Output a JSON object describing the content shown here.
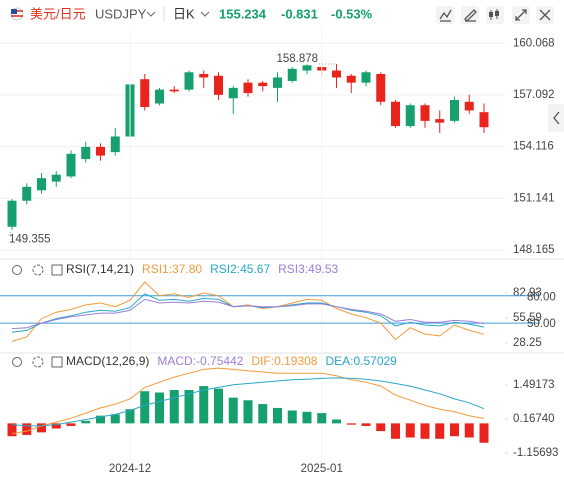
{
  "toolbar": {
    "pair_name": "美元/日元",
    "symbol": "USDJPY",
    "period": "日K",
    "price": 155.234,
    "change": -0.831,
    "change_pct": "-0.53%"
  },
  "chart_data": [
    {
      "type": "candlestick",
      "up_color": "#15a06e",
      "down_color": "#e8241c",
      "grid": true,
      "categories": [
        null,
        null,
        null,
        null,
        null,
        null,
        null,
        null,
        "2024-12",
        null,
        null,
        null,
        null,
        null,
        null,
        null,
        null,
        null,
        null,
        null,
        null,
        "2025-01",
        null,
        null,
        null,
        null,
        null,
        null,
        null,
        null,
        null,
        null,
        null
      ],
      "open": [
        149.5,
        151.0,
        151.6,
        152.1,
        152.4,
        153.4,
        154.1,
        153.8,
        154.7,
        158.0,
        156.6,
        157.4,
        157.4,
        158.3,
        158.2,
        156.9,
        157.8,
        157.8,
        157.5,
        157.9,
        158.5,
        158.7,
        158.5,
        158.2,
        157.8,
        158.3,
        156.7,
        155.3,
        156.5,
        155.7,
        155.6,
        156.7,
        156.1
      ],
      "close": [
        151.0,
        151.8,
        152.3,
        152.5,
        153.7,
        154.1,
        153.6,
        154.7,
        157.7,
        156.4,
        157.4,
        157.3,
        158.4,
        158.1,
        157.1,
        157.5,
        157.2,
        157.6,
        158.1,
        158.6,
        158.8,
        158.5,
        158.1,
        157.8,
        158.4,
        156.7,
        155.3,
        156.5,
        155.6,
        155.5,
        156.8,
        156.2,
        155.234
      ],
      "high": [
        151.1,
        152.0,
        152.6,
        152.7,
        153.9,
        154.4,
        154.3,
        155.2,
        158.0,
        158.3,
        157.5,
        157.6,
        158.5,
        158.5,
        158.4,
        157.6,
        158.0,
        157.9,
        158.4,
        158.7,
        158.85,
        158.75,
        158.878,
        158.3,
        158.5,
        158.4,
        156.8,
        156.6,
        156.6,
        156.2,
        157.0,
        157.1,
        156.6
      ],
      "low": [
        149.355,
        150.8,
        151.4,
        151.8,
        152.3,
        153.2,
        153.3,
        153.6,
        154.4,
        156.2,
        156.5,
        157.2,
        157.3,
        157.5,
        156.8,
        156.0,
        157.0,
        157.3,
        156.7,
        157.8,
        158.3,
        158.2,
        157.5,
        157.2,
        157.6,
        156.5,
        155.2,
        155.2,
        155.2,
        154.9,
        155.5,
        156.0,
        154.9
      ],
      "ylim": [
        147.7,
        160.95
      ],
      "yticks": [
        160.068,
        157.092,
        154.116,
        151.141,
        148.165
      ]
    },
    {
      "type": "line",
      "title": "RSI(7,14,21)",
      "grid": false,
      "series": [
        {
          "name": "RSI1:37.80",
          "color": "#f39a3a",
          "values": [
            30,
            35,
            55,
            62,
            65,
            70,
            72,
            68,
            75,
            95,
            80,
            82,
            78,
            83,
            80,
            68,
            70,
            66,
            68,
            72,
            76,
            75,
            66,
            60,
            56,
            50,
            32,
            45,
            38,
            36,
            48,
            42,
            37.8
          ]
        },
        {
          "name": "RSI2:45.67",
          "color": "#2aa6c8",
          "values": [
            40,
            42,
            50,
            55,
            58,
            62,
            64,
            63,
            67,
            82,
            75,
            76,
            74,
            77,
            76,
            68,
            69,
            67,
            68,
            70,
            72,
            72,
            68,
            64,
            62,
            58,
            47,
            51,
            48,
            47,
            51,
            49,
            45.67
          ]
        },
        {
          "name": "RSI3:49.53",
          "color": "#9d7fd6",
          "values": [
            44,
            45,
            50,
            54,
            57,
            59,
            61,
            61,
            64,
            76,
            72,
            73,
            72,
            74,
            73,
            68,
            69,
            68,
            68,
            69,
            71,
            71,
            68,
            65,
            63,
            60,
            52,
            54,
            51,
            51,
            53,
            52,
            49.53
          ]
        }
      ],
      "hlines": [
        {
          "value": 80,
          "label": "80.00",
          "color": "#3a9fe0"
        },
        {
          "value": 50,
          "label": "50.00",
          "color": "#3a9fe0"
        }
      ],
      "ylim": [
        20.6,
        97.2
      ],
      "yticks": [
        82.93,
        55.59,
        28.25
      ]
    },
    {
      "type": "combo",
      "title": "MACD(12,26,9)",
      "grid": false,
      "up_color": "#15a06e",
      "down_color": "#e8241c",
      "series": [
        {
          "name": "MACD:-0.75442",
          "kind": "bar",
          "color": "#9d7fd6",
          "values": [
            -0.5,
            -0.45,
            -0.35,
            -0.2,
            -0.1,
            0.1,
            0.3,
            0.35,
            0.55,
            1.25,
            1.2,
            1.3,
            1.3,
            1.45,
            1.35,
            1.0,
            0.9,
            0.75,
            0.6,
            0.5,
            0.45,
            0.4,
            0.15,
            -0.05,
            -0.1,
            -0.3,
            -0.6,
            -0.55,
            -0.6,
            -0.6,
            -0.5,
            -0.55,
            -0.75442
          ]
        },
        {
          "name": "DIF:0.19308",
          "kind": "line",
          "color": "#f39a3a",
          "values": [
            -0.4,
            -0.3,
            -0.1,
            0.05,
            0.2,
            0.4,
            0.6,
            0.75,
            0.95,
            1.4,
            1.6,
            1.8,
            1.95,
            2.1,
            2.15,
            2.1,
            2.05,
            2.0,
            1.95,
            1.95,
            1.95,
            1.95,
            1.85,
            1.7,
            1.6,
            1.45,
            1.1,
            0.9,
            0.7,
            0.55,
            0.45,
            0.3,
            0.19308
          ]
        },
        {
          "name": "DEA:0.57029",
          "kind": "line",
          "color": "#2aa6c8",
          "values": [
            -0.05,
            -0.1,
            -0.1,
            -0.05,
            0.05,
            0.15,
            0.25,
            0.35,
            0.5,
            0.7,
            0.85,
            1.0,
            1.15,
            1.3,
            1.4,
            1.5,
            1.55,
            1.6,
            1.65,
            1.7,
            1.72,
            1.75,
            1.77,
            1.75,
            1.72,
            1.65,
            1.55,
            1.45,
            1.3,
            1.15,
            0.95,
            0.8,
            0.57029
          ]
        }
      ],
      "ylim": [
        -1.62,
        2.66
      ],
      "yticks": [
        1.49173,
        {
          "value": 0.1674,
          "label": "0.16740"
        },
        -1.15693
      ]
    }
  ]
}
